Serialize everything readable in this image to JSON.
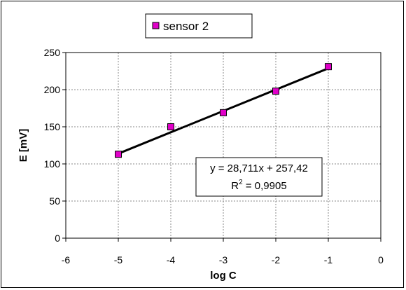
{
  "chart_data": {
    "type": "scatter",
    "series": [
      {
        "name": "sensor 2",
        "x": [
          -5,
          -4,
          -3,
          -2,
          -1
        ],
        "y": [
          113,
          150,
          169,
          198,
          231
        ],
        "marker_color": "#e000c8",
        "marker": "square"
      }
    ],
    "trendline": {
      "type": "linear",
      "slope": 28.711,
      "intercept": 257.42,
      "x_range": [
        -5,
        -1
      ],
      "color": "#000000",
      "equation_label": "y = 28,711x + 257,42",
      "r2_prefix": "R",
      "r2_superscript": "2",
      "r2_value": " = 0,9905"
    },
    "xlabel": "log C",
    "ylabel": "E  [mV]",
    "xlim": [
      -6,
      0
    ],
    "ylim": [
      0,
      250
    ],
    "x_ticks": [
      -6,
      -5,
      -4,
      -3,
      -2,
      -1,
      0
    ],
    "y_ticks": [
      0,
      50,
      100,
      150,
      200,
      250
    ],
    "grid": true,
    "legend": "top-center"
  }
}
